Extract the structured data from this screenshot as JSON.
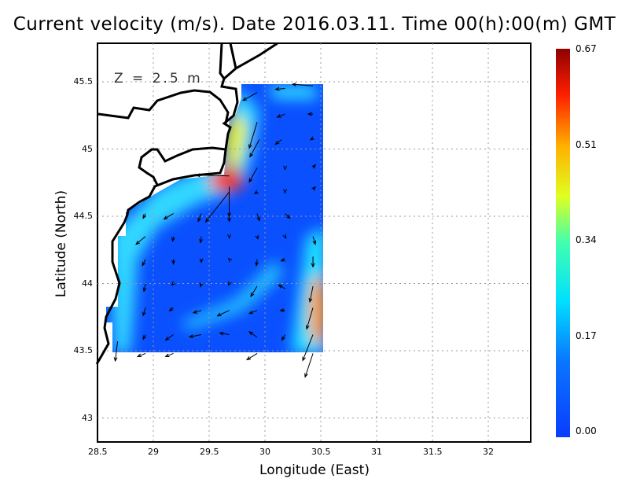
{
  "title": "Current velocity (m/s). Date 2016.03.11. Time 00(h):00(m) GMT",
  "depth_label": "Z = 2.5 m",
  "chart_data": {
    "type": "vector-field",
    "xlabel": "Longitude (East)",
    "ylabel": "Latitude (North)",
    "xlim": [
      28.5,
      32.37
    ],
    "ylim": [
      42.82,
      45.79
    ],
    "xticks": [
      "28.5",
      "29",
      "29.5",
      "30",
      "30.5",
      "31",
      "31.5",
      "32"
    ],
    "yticks": [
      "45.5",
      "45",
      "44.5",
      "44",
      "43.5",
      "43"
    ],
    "grid": true,
    "colorbar": {
      "ticks": [
        "0.67",
        "0.51",
        "0.34",
        "0.17",
        "0.00"
      ],
      "range": [
        0,
        0.67
      ],
      "colormap": "jet"
    },
    "vectors": [
      [
        30.43,
        45.47,
        -0.26,
        0.02
      ],
      [
        30.18,
        45.45,
        -0.12,
        -0.01
      ],
      [
        29.93,
        45.42,
        -0.18,
        -0.1
      ],
      [
        29.93,
        45.2,
        -0.1,
        -0.33
      ],
      [
        30.18,
        45.26,
        -0.1,
        -0.04
      ],
      [
        30.43,
        45.26,
        -0.06,
        0
      ],
      [
        29.95,
        45.07,
        -0.12,
        -0.22
      ],
      [
        30.15,
        45.07,
        -0.08,
        -0.06
      ],
      [
        30.43,
        45.08,
        -0.03,
        -0.02
      ],
      [
        29.93,
        44.86,
        -0.1,
        -0.18
      ],
      [
        30.18,
        44.86,
        0,
        -0.02
      ],
      [
        30.43,
        44.86,
        0.03,
        0.04
      ],
      [
        29.68,
        44.8,
        -0.42,
        0.01
      ],
      [
        29.68,
        44.72,
        0,
        -0.38
      ],
      [
        29.68,
        44.68,
        -0.3,
        -0.38
      ],
      [
        29.93,
        44.68,
        -0.03,
        -0.02
      ],
      [
        30.18,
        44.68,
        0,
        -0.01
      ],
      [
        30.43,
        44.7,
        0.03,
        0.03
      ],
      [
        28.93,
        44.52,
        -0.03,
        -0.06
      ],
      [
        29.18,
        44.52,
        -0.12,
        -0.07
      ],
      [
        29.43,
        44.52,
        -0.04,
        -0.1
      ],
      [
        29.68,
        44.52,
        0,
        -0.1
      ],
      [
        29.93,
        44.52,
        0.03,
        -0.09
      ],
      [
        30.18,
        44.52,
        0.06,
        -0.06
      ],
      [
        28.93,
        44.35,
        -0.12,
        -0.1
      ],
      [
        29.18,
        44.35,
        -0.01,
        -0.06
      ],
      [
        29.43,
        44.35,
        -0.01,
        -0.08
      ],
      [
        29.68,
        44.35,
        0,
        -0.02
      ],
      [
        29.93,
        44.35,
        0.01,
        -0.03
      ],
      [
        30.18,
        44.35,
        0.01,
        -0.02
      ],
      [
        30.43,
        44.35,
        0.03,
        -0.1
      ],
      [
        28.93,
        44.18,
        -0.04,
        -0.08
      ],
      [
        29.18,
        44.18,
        0,
        -0.06
      ],
      [
        29.43,
        44.18,
        0,
        -0.04
      ],
      [
        29.68,
        44.18,
        -0.01,
        0.01
      ],
      [
        29.93,
        44.18,
        -0.01,
        -0.08
      ],
      [
        30.18,
        44.18,
        -0.05,
        -0.02
      ],
      [
        30.43,
        44.2,
        0,
        -0.13
      ],
      [
        28.93,
        44.0,
        -0.02,
        -0.1
      ],
      [
        29.18,
        44.0,
        -0.02,
        -0.02
      ],
      [
        29.43,
        44.0,
        -0.01,
        -0.04
      ],
      [
        29.68,
        44.0,
        -0.01,
        -0.02
      ],
      [
        29.93,
        43.98,
        -0.08,
        -0.13
      ],
      [
        30.18,
        43.96,
        -0.08,
        0.05
      ],
      [
        30.43,
        43.98,
        -0.04,
        -0.2
      ],
      [
        28.93,
        43.82,
        -0.03,
        -0.1
      ],
      [
        29.18,
        43.82,
        -0.05,
        -0.04
      ],
      [
        29.43,
        43.8,
        -0.1,
        -0.03
      ],
      [
        29.68,
        43.8,
        -0.15,
        -0.07
      ],
      [
        29.93,
        43.8,
        -0.1,
        -0.04
      ],
      [
        30.18,
        43.8,
        -0.06,
        0
      ],
      [
        30.43,
        43.82,
        -0.08,
        -0.27
      ],
      [
        28.93,
        43.62,
        -0.03,
        -0.06
      ],
      [
        29.18,
        43.62,
        -0.1,
        -0.07
      ],
      [
        29.43,
        43.62,
        -0.15,
        -0.03
      ],
      [
        29.68,
        43.62,
        -0.12,
        0.02
      ],
      [
        29.93,
        43.6,
        -0.1,
        0.07
      ],
      [
        30.18,
        43.62,
        -0.04,
        -0.07
      ],
      [
        30.43,
        43.62,
        -0.13,
        -0.33
      ],
      [
        28.68,
        43.57,
        -0.03,
        -0.25
      ],
      [
        28.93,
        43.48,
        -0.1,
        -0.04
      ],
      [
        29.18,
        43.48,
        -0.1,
        -0.04
      ],
      [
        29.93,
        43.48,
        -0.13,
        -0.08
      ],
      [
        30.43,
        43.48,
        -0.1,
        -0.3
      ]
    ]
  }
}
